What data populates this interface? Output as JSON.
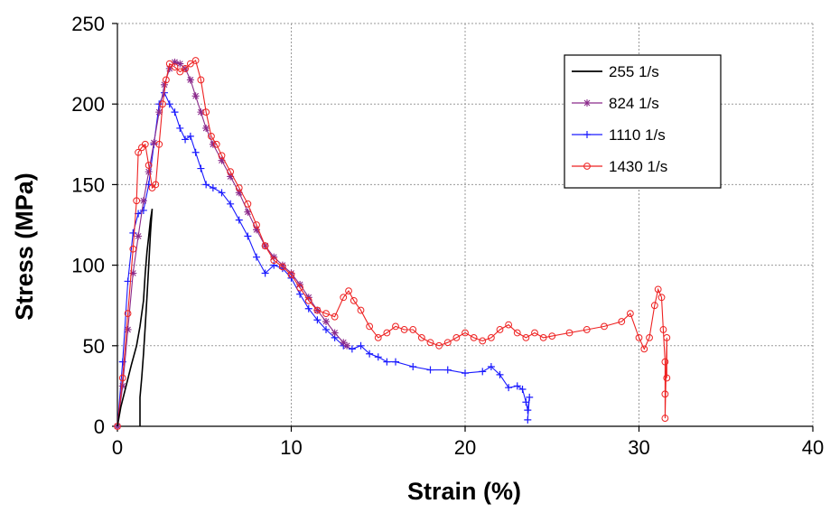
{
  "chart_data": {
    "type": "line",
    "title": "",
    "xlabel": "Strain (%)",
    "ylabel": "Stress (MPa)",
    "xlim": [
      0,
      40
    ],
    "ylim": [
      0,
      250
    ],
    "xticks": [
      0,
      10,
      20,
      30,
      40
    ],
    "yticks": [
      0,
      50,
      100,
      150,
      200,
      250
    ],
    "x_tick_labels": [
      "0",
      "10",
      "20",
      "30",
      "40"
    ],
    "y_tick_labels": [
      "0",
      "50",
      "100",
      "150",
      "200",
      "250"
    ],
    "grid": true,
    "legend_position": "top-right",
    "series": [
      {
        "name": "255 1/s",
        "color": "#000000",
        "marker": "none",
        "points": [
          [
            0,
            0
          ],
          [
            0.2,
            12
          ],
          [
            0.5,
            25
          ],
          [
            0.8,
            38
          ],
          [
            1.1,
            50
          ],
          [
            1.3,
            62
          ],
          [
            1.5,
            78
          ],
          [
            1.6,
            95
          ],
          [
            1.7,
            108
          ],
          [
            1.8,
            118
          ],
          [
            1.9,
            128
          ],
          [
            2.0,
            135
          ],
          [
            1.9,
            120
          ],
          [
            1.8,
            100
          ],
          [
            1.7,
            80
          ],
          [
            1.6,
            62
          ],
          [
            1.5,
            45
          ],
          [
            1.4,
            30
          ],
          [
            1.3,
            18
          ],
          [
            1.3,
            8
          ],
          [
            1.3,
            0
          ]
        ]
      },
      {
        "name": "824 1/s",
        "color": "#8b2a8b",
        "marker": "asterisk",
        "points": [
          [
            0,
            0
          ],
          [
            0.3,
            25
          ],
          [
            0.6,
            60
          ],
          [
            0.9,
            95
          ],
          [
            1.2,
            118
          ],
          [
            1.5,
            140
          ],
          [
            1.8,
            158
          ],
          [
            2.1,
            176
          ],
          [
            2.4,
            195
          ],
          [
            2.7,
            212
          ],
          [
            3.0,
            222
          ],
          [
            3.3,
            226
          ],
          [
            3.6,
            225
          ],
          [
            3.9,
            222
          ],
          [
            4.2,
            215
          ],
          [
            4.5,
            205
          ],
          [
            4.8,
            195
          ],
          [
            5.1,
            185
          ],
          [
            5.5,
            175
          ],
          [
            6.0,
            165
          ],
          [
            6.5,
            155
          ],
          [
            7.0,
            145
          ],
          [
            7.5,
            133
          ],
          [
            8.0,
            122
          ],
          [
            8.5,
            112
          ],
          [
            9.0,
            105
          ],
          [
            9.5,
            100
          ],
          [
            10.0,
            95
          ],
          [
            10.5,
            88
          ],
          [
            11.0,
            80
          ],
          [
            11.5,
            72
          ],
          [
            12.0,
            65
          ],
          [
            12.5,
            58
          ],
          [
            13.0,
            52
          ],
          [
            13.2,
            50
          ]
        ]
      },
      {
        "name": "1110 1/s",
        "color": "#1a1aff",
        "marker": "plus",
        "points": [
          [
            0,
            0
          ],
          [
            0.3,
            40
          ],
          [
            0.6,
            90
          ],
          [
            0.9,
            120
          ],
          [
            1.2,
            132
          ],
          [
            1.5,
            134
          ],
          [
            1.8,
            150
          ],
          [
            2.1,
            175
          ],
          [
            2.4,
            200
          ],
          [
            2.7,
            207
          ],
          [
            3.0,
            200
          ],
          [
            3.3,
            195
          ],
          [
            3.6,
            185
          ],
          [
            3.9,
            178
          ],
          [
            4.2,
            180
          ],
          [
            4.5,
            170
          ],
          [
            4.8,
            160
          ],
          [
            5.1,
            150
          ],
          [
            5.5,
            148
          ],
          [
            6.0,
            145
          ],
          [
            6.5,
            138
          ],
          [
            7.0,
            128
          ],
          [
            7.5,
            118
          ],
          [
            8.0,
            105
          ],
          [
            8.5,
            95
          ],
          [
            9.0,
            100
          ],
          [
            9.5,
            98
          ],
          [
            10.0,
            92
          ],
          [
            10.5,
            82
          ],
          [
            11.0,
            73
          ],
          [
            11.5,
            66
          ],
          [
            12.0,
            60
          ],
          [
            12.5,
            55
          ],
          [
            13.0,
            50
          ],
          [
            13.5,
            48
          ],
          [
            14.0,
            50
          ],
          [
            14.5,
            45
          ],
          [
            15.0,
            43
          ],
          [
            15.5,
            40
          ],
          [
            16.0,
            40
          ],
          [
            17.0,
            37
          ],
          [
            18.0,
            35
          ],
          [
            19.0,
            35
          ],
          [
            20.0,
            33
          ],
          [
            21.0,
            34
          ],
          [
            21.5,
            37
          ],
          [
            22.0,
            32
          ],
          [
            22.5,
            24
          ],
          [
            23.0,
            25
          ],
          [
            23.3,
            23
          ],
          [
            23.5,
            15
          ],
          [
            23.6,
            10
          ],
          [
            23.7,
            18
          ],
          [
            23.6,
            4
          ]
        ]
      },
      {
        "name": "1430 1/s",
        "color": "#ee2222",
        "marker": "circle",
        "points": [
          [
            0,
            0
          ],
          [
            0.3,
            30
          ],
          [
            0.6,
            70
          ],
          [
            0.9,
            110
          ],
          [
            1.1,
            140
          ],
          [
            1.2,
            170
          ],
          [
            1.4,
            173
          ],
          [
            1.6,
            175
          ],
          [
            1.8,
            162
          ],
          [
            2.0,
            148
          ],
          [
            2.2,
            150
          ],
          [
            2.4,
            175
          ],
          [
            2.6,
            200
          ],
          [
            2.8,
            215
          ],
          [
            3.0,
            225
          ],
          [
            3.3,
            223
          ],
          [
            3.6,
            220
          ],
          [
            3.9,
            222
          ],
          [
            4.2,
            225
          ],
          [
            4.5,
            227
          ],
          [
            4.8,
            215
          ],
          [
            5.1,
            195
          ],
          [
            5.4,
            180
          ],
          [
            5.7,
            175
          ],
          [
            6.0,
            168
          ],
          [
            6.5,
            158
          ],
          [
            7.0,
            148
          ],
          [
            7.5,
            138
          ],
          [
            8.0,
            125
          ],
          [
            8.5,
            112
          ],
          [
            9.0,
            103
          ],
          [
            9.5,
            99
          ],
          [
            10.0,
            94
          ],
          [
            10.5,
            86
          ],
          [
            11.0,
            78
          ],
          [
            11.5,
            72
          ],
          [
            12.0,
            70
          ],
          [
            12.5,
            68
          ],
          [
            13.0,
            80
          ],
          [
            13.3,
            84
          ],
          [
            13.6,
            78
          ],
          [
            14.0,
            72
          ],
          [
            14.5,
            62
          ],
          [
            15.0,
            55
          ],
          [
            15.5,
            58
          ],
          [
            16.0,
            62
          ],
          [
            16.5,
            60
          ],
          [
            17.0,
            60
          ],
          [
            17.5,
            55
          ],
          [
            18.0,
            52
          ],
          [
            18.5,
            50
          ],
          [
            19.0,
            52
          ],
          [
            19.5,
            55
          ],
          [
            20.0,
            58
          ],
          [
            20.5,
            55
          ],
          [
            21.0,
            53
          ],
          [
            21.5,
            55
          ],
          [
            22.0,
            60
          ],
          [
            22.5,
            63
          ],
          [
            23.0,
            58
          ],
          [
            23.5,
            55
          ],
          [
            24.0,
            58
          ],
          [
            24.5,
            55
          ],
          [
            25.0,
            56
          ],
          [
            26.0,
            58
          ],
          [
            27.0,
            60
          ],
          [
            28.0,
            62
          ],
          [
            29.0,
            65
          ],
          [
            29.5,
            70
          ],
          [
            30.0,
            55
          ],
          [
            30.3,
            48
          ],
          [
            30.6,
            55
          ],
          [
            30.9,
            75
          ],
          [
            31.1,
            85
          ],
          [
            31.3,
            80
          ],
          [
            31.4,
            60
          ],
          [
            31.5,
            40
          ],
          [
            31.5,
            20
          ],
          [
            31.5,
            5
          ],
          [
            31.6,
            55
          ],
          [
            31.6,
            30
          ]
        ]
      }
    ]
  }
}
